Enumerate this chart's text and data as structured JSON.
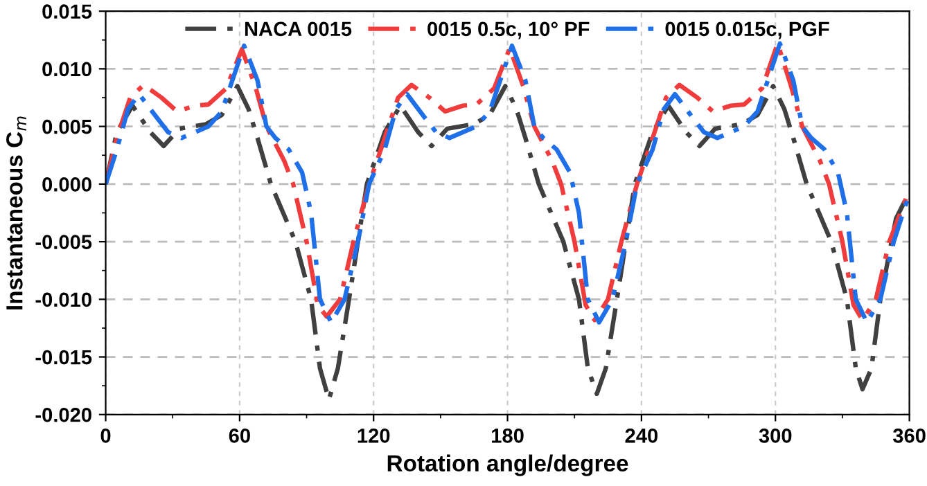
{
  "chart_data": {
    "type": "line",
    "xlabel": "Rotation angle/degree",
    "ylabel": "Instantaneous C$_{m}$",
    "xlim": [
      0,
      360
    ],
    "xticks": [
      0,
      60,
      120,
      180,
      240,
      300,
      360
    ],
    "ylim": [
      -0.02,
      0.015
    ],
    "yticks": [
      {
        "value": -0.02,
        "label": "-0.020"
      },
      {
        "value": -0.015,
        "label": "-0.015"
      },
      {
        "value": -0.01,
        "label": "-0.010"
      },
      {
        "value": -0.005,
        "label": "-0.005"
      },
      {
        "value": 0,
        "label": "0.000"
      },
      {
        "value": 0.005,
        "label": "0.005"
      },
      {
        "value": 0.01,
        "label": "0.010"
      },
      {
        "value": 0.015,
        "label": "0.015"
      }
    ],
    "grid": true,
    "legend": "top",
    "line_style": "dashdot",
    "marker": "none",
    "series": [
      {
        "name": "NACA 0015",
        "color": "#404040",
        "x": [
          0,
          5,
          12,
          20,
          26,
          33,
          45,
          52,
          59,
          64,
          68,
          74,
          85,
          92,
          96,
          100,
          104,
          109,
          117,
          125,
          132,
          140,
          146,
          153,
          165,
          172,
          179,
          184,
          188,
          194,
          205,
          212,
          216,
          220,
          224,
          229,
          237,
          245,
          252,
          260,
          266,
          273,
          285,
          292,
          299,
          304,
          308,
          314,
          325,
          332,
          336,
          339,
          343,
          347,
          354,
          360
        ],
        "values": [
          0,
          0.0045,
          0.0068,
          0.0045,
          0.0033,
          0.0048,
          0.0052,
          0.006,
          0.0085,
          0.0065,
          0.004,
          0,
          -0.005,
          -0.01,
          -0.016,
          -0.0187,
          -0.016,
          -0.01,
          0,
          0.0045,
          0.0068,
          0.0045,
          0.0033,
          0.0048,
          0.0052,
          0.006,
          0.0085,
          0.0065,
          0.004,
          0,
          -0.005,
          -0.01,
          -0.016,
          -0.0182,
          -0.016,
          -0.01,
          0,
          0.0045,
          0.0068,
          0.0045,
          0.0033,
          0.0048,
          0.0052,
          0.006,
          0.0085,
          0.0065,
          0.004,
          0,
          -0.005,
          -0.01,
          -0.016,
          -0.0178,
          -0.016,
          -0.01,
          -0.003,
          -0.0007
        ]
      },
      {
        "name": "0015 0.5c, 10° PF",
        "color": "#f03c3c",
        "x": [
          0,
          5,
          11,
          17,
          25,
          32,
          40,
          46,
          54,
          61,
          67,
          72,
          76,
          80,
          84,
          90,
          95,
          99,
          105,
          111,
          118,
          125,
          131,
          137,
          145,
          152,
          160,
          166,
          174,
          181,
          187,
          192,
          196,
          200,
          204,
          210,
          215,
          219,
          225,
          231,
          238,
          245,
          251,
          257,
          265,
          272,
          280,
          286,
          294,
          301,
          307,
          312,
          316,
          320,
          324,
          330,
          335,
          339,
          345,
          351,
          360
        ],
        "values": [
          0,
          0.004,
          0.0075,
          0.0086,
          0.0075,
          0.0063,
          0.0068,
          0.0069,
          0.0083,
          0.0117,
          0.0085,
          0.005,
          0.0035,
          0.002,
          0,
          -0.005,
          -0.0105,
          -0.0115,
          -0.01,
          -0.005,
          0,
          0.004,
          0.0075,
          0.0086,
          0.0075,
          0.0063,
          0.0068,
          0.0069,
          0.0083,
          0.0118,
          0.0085,
          0.005,
          0.0035,
          0.002,
          0,
          -0.005,
          -0.0105,
          -0.0118,
          -0.01,
          -0.005,
          0,
          0.004,
          0.0075,
          0.0086,
          0.0075,
          0.0063,
          0.0068,
          0.0069,
          0.0083,
          0.0122,
          0.0085,
          0.005,
          0.0035,
          0.002,
          0,
          -0.005,
          -0.0105,
          -0.0118,
          -0.01,
          -0.005,
          -0.0005
        ]
      },
      {
        "name": "0015 0.015c, PGF",
        "color": "#1e6fe8",
        "x": [
          0,
          5,
          10,
          15,
          22,
          28,
          34,
          46,
          52,
          62,
          68,
          72,
          76,
          82,
          88,
          92,
          96,
          101,
          107,
          113,
          118,
          125,
          130,
          135,
          142,
          148,
          154,
          166,
          172,
          182,
          188,
          192,
          196,
          202,
          208,
          212,
          216,
          221,
          227,
          233,
          238,
          245,
          250,
          255,
          262,
          268,
          274,
          286,
          292,
          302,
          308,
          312,
          316,
          322,
          328,
          332,
          336,
          341,
          347,
          353,
          360
        ],
        "values": [
          0,
          0.003,
          0.0065,
          0.0078,
          0.006,
          0.0045,
          0.004,
          0.005,
          0.0063,
          0.012,
          0.009,
          0.005,
          0.004,
          0.003,
          0.001,
          -0.0025,
          -0.01,
          -0.012,
          -0.01,
          -0.005,
          0,
          0.003,
          0.0065,
          0.0078,
          0.006,
          0.0045,
          0.004,
          0.005,
          0.0063,
          0.012,
          0.009,
          0.005,
          0.004,
          0.003,
          0.001,
          -0.0025,
          -0.01,
          -0.012,
          -0.01,
          -0.005,
          0,
          0.003,
          0.0065,
          0.0078,
          0.006,
          0.0045,
          0.004,
          0.005,
          0.0063,
          0.0122,
          0.009,
          0.005,
          0.004,
          0.003,
          0.001,
          -0.0025,
          -0.01,
          -0.012,
          -0.01,
          -0.005,
          -0.0008
        ]
      }
    ]
  }
}
